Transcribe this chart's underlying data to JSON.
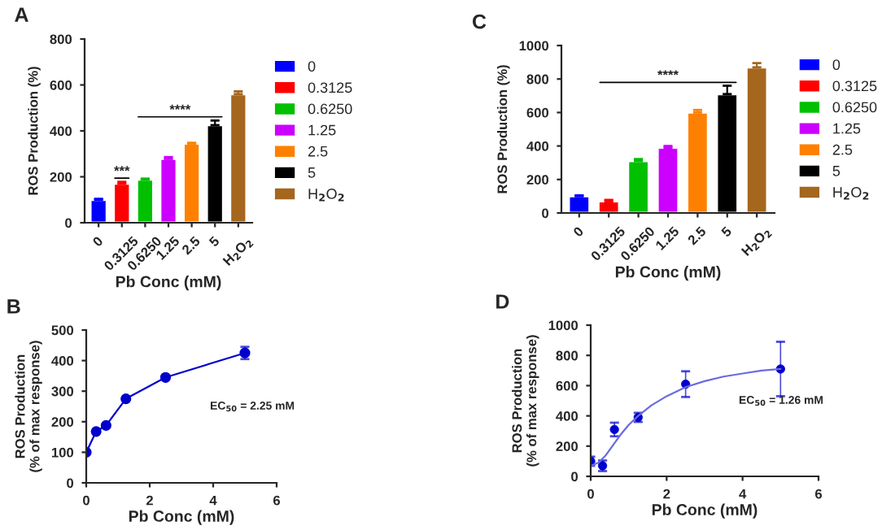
{
  "chart_data": [
    {
      "type": "bar",
      "title": "A",
      "xlabel": "Pb Conc (mM)",
      "ylabel": "ROS Production (%)",
      "categories": [
        "0",
        "0.3125",
        "0.6250",
        "1.25",
        "2.5",
        "5",
        "H$_{2}$O$_{2}$"
      ],
      "series": [
        {
          "name": "0",
          "color": "#0000ff",
          "values": [
            100,
            null,
            null,
            null,
            null,
            null,
            null
          ],
          "errors": [
            4,
            null,
            null,
            null,
            null,
            null,
            null
          ]
        },
        {
          "name": "0.3125",
          "color": "#ff0000",
          "values": [
            null,
            170,
            null,
            null,
            null,
            null,
            null
          ],
          "errors": [
            null,
            8,
            null,
            null,
            null,
            null,
            null
          ]
        },
        {
          "name": "0.6250",
          "color": "#00c000",
          "values": [
            null,
            null,
            188,
            null,
            null,
            null,
            null
          ],
          "errors": [
            null,
            null,
            4,
            null,
            null,
            null,
            null
          ]
        },
        {
          "name": "1.25",
          "color": "#cc00ff",
          "values": [
            null,
            null,
            null,
            278,
            null,
            null,
            null
          ],
          "errors": [
            null,
            null,
            null,
            8,
            null,
            null,
            null
          ]
        },
        {
          "name": "2.5",
          "color": "#ff8000",
          "values": [
            null,
            null,
            null,
            null,
            345,
            null,
            null
          ],
          "errors": [
            null,
            null,
            null,
            null,
            3,
            null,
            null
          ]
        },
        {
          "name": "5",
          "color": "#000000",
          "values": [
            null,
            null,
            null,
            null,
            null,
            425,
            null
          ],
          "errors": [
            null,
            null,
            null,
            null,
            null,
            20,
            null
          ]
        },
        {
          "name": "H$_{2}$O$_{2}$",
          "color": "#a5661e",
          "values": [
            null,
            null,
            null,
            null,
            null,
            null,
            560
          ],
          "errors": [
            null,
            null,
            null,
            null,
            null,
            null,
            12
          ]
        }
      ],
      "ylim": [
        0,
        800
      ],
      "yticks": [
        0,
        200,
        400,
        600,
        800
      ],
      "grid": false,
      "legend": "right",
      "annotations": [
        "***",
        "****"
      ]
    },
    {
      "type": "bar",
      "title": "C",
      "xlabel": "Pb Conc (mM)",
      "ylabel": "ROS Production (%)",
      "categories": [
        "0",
        "0.3125",
        "0.6250",
        "1.25",
        "2.5",
        "5",
        "H$_{2}$O$_{2}$"
      ],
      "series": [
        {
          "name": "0",
          "color": "#0000ff",
          "values": [
            100,
            null,
            null,
            null,
            null,
            null,
            null
          ],
          "errors": [
            5,
            null,
            null,
            null,
            null,
            null,
            null
          ]
        },
        {
          "name": "0.3125",
          "color": "#ff0000",
          "values": [
            null,
            70,
            null,
            null,
            null,
            null,
            null
          ],
          "errors": [
            null,
            8,
            null,
            null,
            null,
            null,
            null
          ]
        },
        {
          "name": "0.6250",
          "color": "#00c000",
          "values": [
            null,
            null,
            310,
            null,
            null,
            null,
            null
          ],
          "errors": [
            null,
            null,
            12,
            null,
            null,
            null,
            null
          ]
        },
        {
          "name": "1.25",
          "color": "#cc00ff",
          "values": [
            null,
            null,
            null,
            390,
            null,
            null,
            null
          ],
          "errors": [
            null,
            null,
            null,
            10,
            null,
            null,
            null
          ]
        },
        {
          "name": "2.5",
          "color": "#ff8000",
          "values": [
            null,
            null,
            null,
            null,
            600,
            null,
            null
          ],
          "errors": [
            null,
            null,
            null,
            null,
            15,
            null,
            null
          ]
        },
        {
          "name": "5",
          "color": "#000000",
          "values": [
            null,
            null,
            null,
            null,
            null,
            710,
            null
          ],
          "errors": [
            null,
            null,
            null,
            null,
            null,
            50,
            null
          ]
        },
        {
          "name": "H$_{2}$O$_{2}$",
          "color": "#a5661e",
          "values": [
            null,
            null,
            null,
            null,
            null,
            null,
            870
          ],
          "errors": [
            null,
            null,
            null,
            null,
            null,
            null,
            25
          ]
        }
      ],
      "ylim": [
        0,
        1000
      ],
      "yticks": [
        0,
        200,
        400,
        600,
        800,
        1000
      ],
      "grid": false,
      "legend": "right",
      "annotations": [
        "****"
      ]
    },
    {
      "type": "line",
      "title": "B",
      "xlabel": "Pb Conc (mM)",
      "ylabel": "ROS Production\n(% of max response)",
      "series": [
        {
          "type": "line",
          "color": "#0000cc",
          "x": [
            0,
            0.3125,
            0.625,
            1.25,
            2.5,
            5
          ],
          "values": [
            100,
            168,
            188,
            275,
            345,
            425
          ],
          "errors": [
            null,
            null,
            null,
            null,
            null,
            20
          ],
          "marker": "circle"
        }
      ],
      "xlim": [
        0,
        6
      ],
      "xticks": [
        0,
        2,
        4,
        6
      ],
      "ylim": [
        0,
        500
      ],
      "yticks": [
        0,
        100,
        200,
        300,
        400,
        500
      ],
      "grid": false,
      "annotations": [
        "EC$_{50}$ = 2.25 mM"
      ]
    },
    {
      "type": "scatter",
      "title": "D",
      "xlabel": "Pb Conc (mM)",
      "ylabel": "ROS Production\n(% of max response)",
      "series": [
        {
          "type": "scatter",
          "color": "#0000cc",
          "x": [
            0,
            0.3125,
            0.625,
            1.25,
            2.5,
            5
          ],
          "values": [
            100,
            70,
            310,
            390,
            610,
            710
          ],
          "errors": [
            30,
            35,
            45,
            30,
            85,
            180
          ],
          "marker": "circle"
        },
        {
          "type": "line",
          "color": "#6a6ae0",
          "x": [
            0,
            0.2,
            0.4,
            0.6,
            0.8,
            1.0,
            1.25,
            1.6,
            2.0,
            2.5,
            3.0,
            3.5,
            4.0,
            4.5,
            5.0
          ],
          "values": [
            70,
            90,
            140,
            210,
            280,
            340,
            400,
            470,
            530,
            590,
            630,
            660,
            680,
            700,
            710
          ],
          "marker": "none"
        }
      ],
      "xlim": [
        0,
        6
      ],
      "xticks": [
        0,
        2,
        4,
        6
      ],
      "ylim": [
        0,
        1000
      ],
      "yticks": [
        0,
        200,
        400,
        600,
        800,
        1000
      ],
      "grid": false,
      "annotations": [
        "EC$_{50}$ = 1.26 mM"
      ]
    }
  ]
}
